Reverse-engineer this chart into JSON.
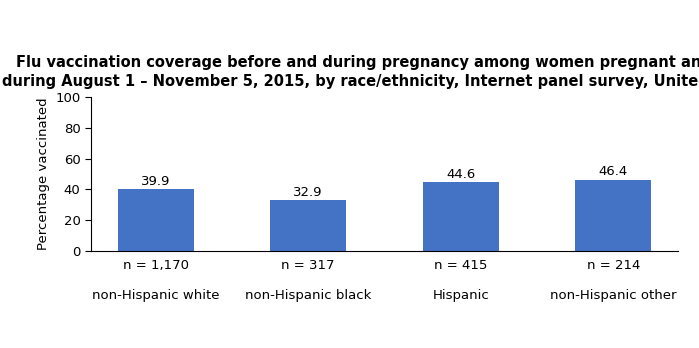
{
  "title_line1": "Flu vaccination coverage before and during pregnancy among women pregnant any time",
  "title_line2": "during August 1 – November 5, 2015, by race/ethnicity, Internet panel survey, United States",
  "categories": [
    "non-Hispanic white",
    "non-Hispanic black",
    "Hispanic",
    "non-Hispanic other"
  ],
  "n_labels": [
    "n = 1,170",
    "n = 317",
    "n = 415",
    "n = 214"
  ],
  "values": [
    39.9,
    32.9,
    44.6,
    46.4
  ],
  "bar_color": "#4472C4",
  "ylabel": "Percentage vaccinated",
  "ylim": [
    0,
    100
  ],
  "yticks": [
    0,
    20,
    40,
    60,
    80,
    100
  ],
  "title_fontsize": 10.5,
  "label_fontsize": 9.5,
  "tick_fontsize": 9.5,
  "value_fontsize": 9.5,
  "background_color": "#ffffff"
}
